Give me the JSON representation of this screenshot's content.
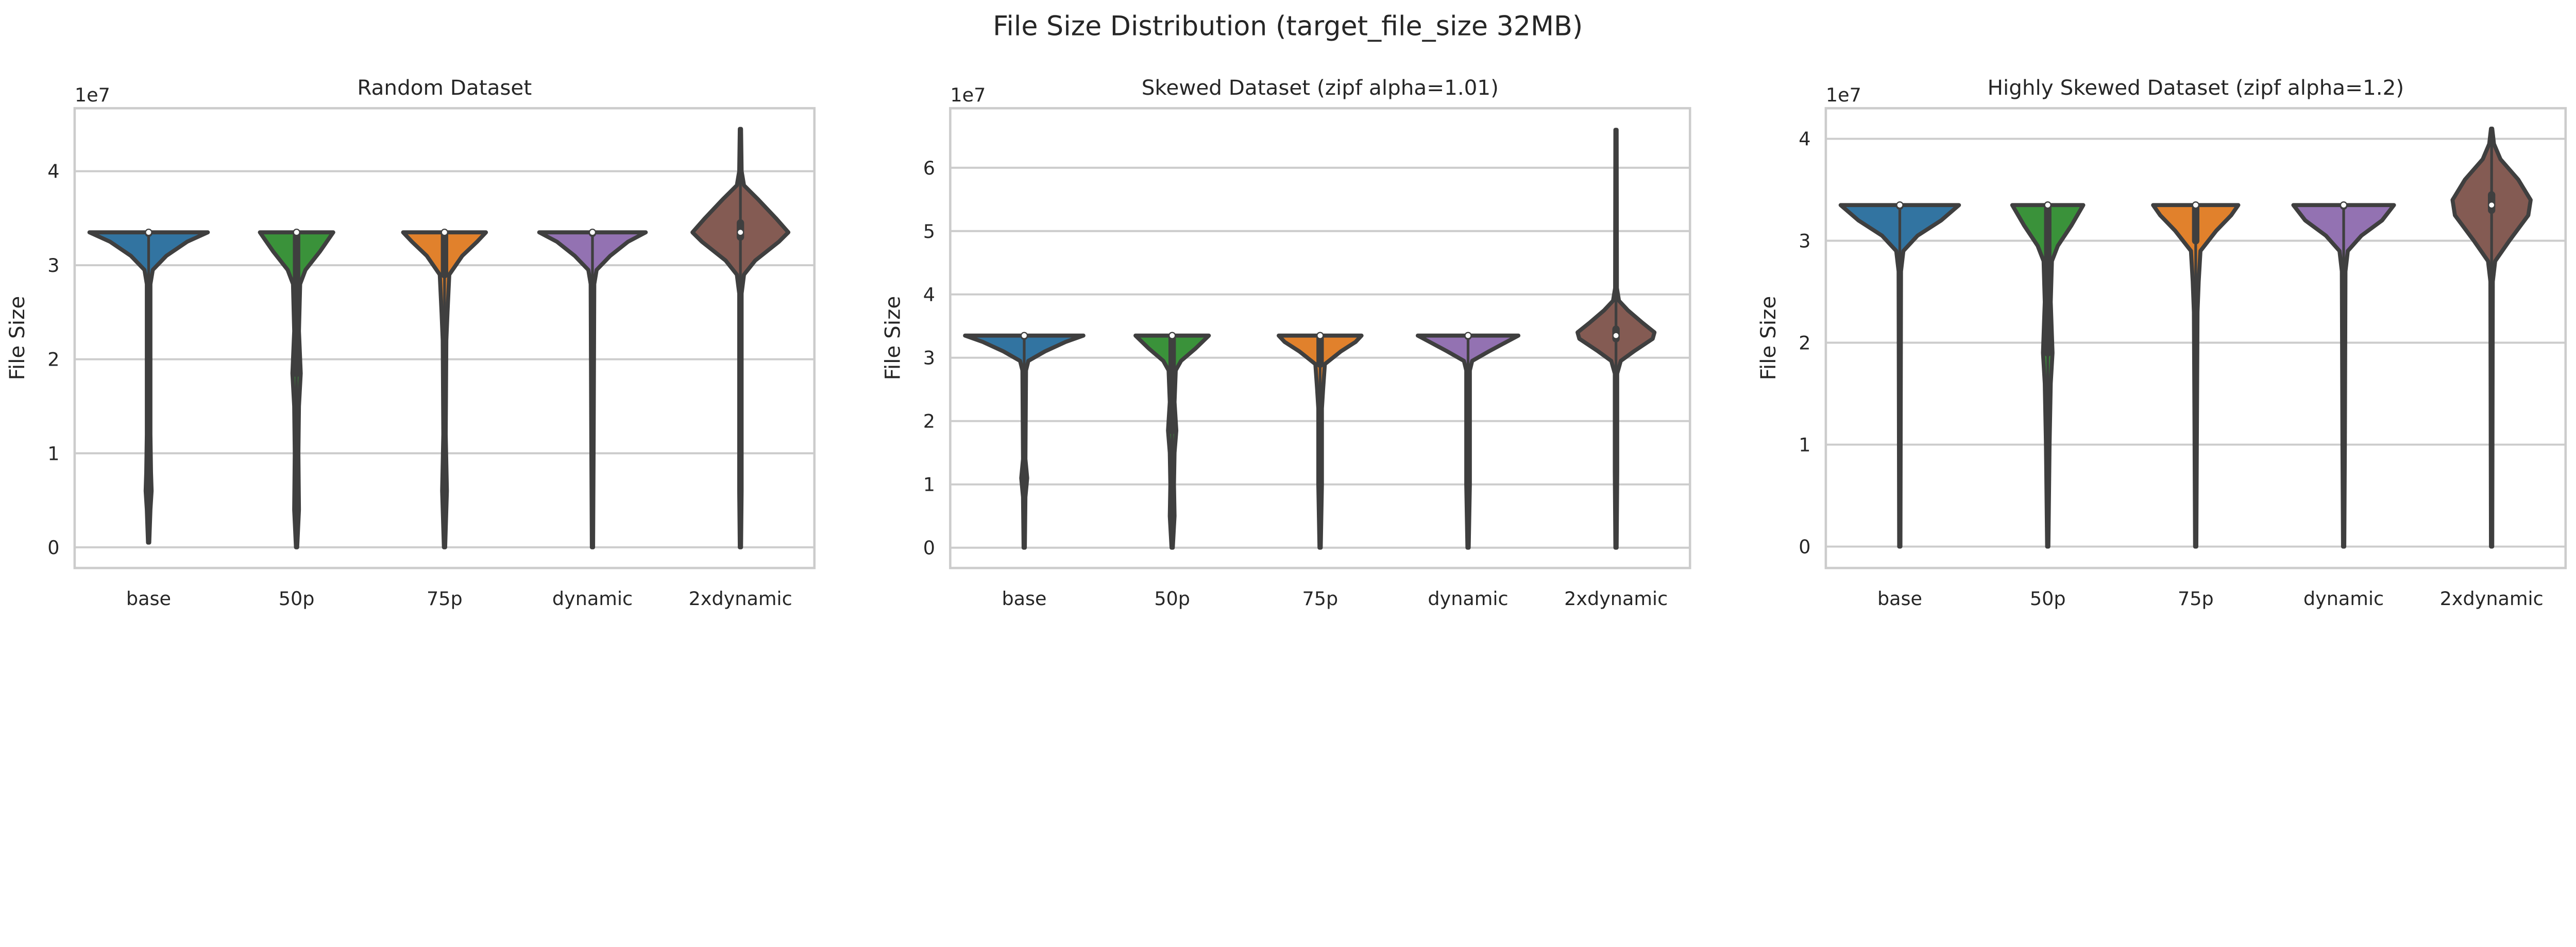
{
  "chart_data": {
    "type": "violin",
    "suptitle": "File Size Distribution (target_file_size 32MB)",
    "colors": {
      "base": "#3274a1",
      "50p": "#3a923a",
      "75p": "#e1812c",
      "dynamic": "#9372b2",
      "2xdynamic": "#845b53",
      "edge": "#3f3f3f"
    },
    "panels": [
      {
        "title": "Random Dataset",
        "ylabel": "File Size",
        "offset_label": "1e7",
        "scale": 10000000,
        "ylim": [
          -0.22,
          4.67
        ],
        "yticks": [
          0,
          1,
          2,
          3,
          4
        ],
        "grid": true,
        "categories": [
          "base",
          "50p",
          "75p",
          "dynamic",
          "2xdynamic"
        ],
        "violins": [
          {
            "min": 0.05,
            "max": 3.35,
            "q1": 3.34,
            "median": 3.35,
            "q3": 3.35,
            "density": [
              [
                0.05,
                0.01
              ],
              [
                0.4,
                0.03
              ],
              [
                0.6,
                0.05
              ],
              [
                0.8,
                0.04
              ],
              [
                1.2,
                0.03
              ],
              [
                2.8,
                0.03
              ],
              [
                2.95,
                0.07
              ],
              [
                3.1,
                0.3
              ],
              [
                3.25,
                0.65
              ],
              [
                3.35,
                1.0
              ]
            ]
          },
          {
            "min": 0.0,
            "max": 3.37,
            "q1": 1.85,
            "median": 3.35,
            "q3": 3.35,
            "density": [
              [
                0.0,
                0.01
              ],
              [
                0.4,
                0.04
              ],
              [
                1.0,
                0.03
              ],
              [
                1.5,
                0.04
              ],
              [
                1.85,
                0.07
              ],
              [
                2.3,
                0.04
              ],
              [
                2.8,
                0.06
              ],
              [
                2.95,
                0.15
              ],
              [
                3.15,
                0.4
              ],
              [
                3.35,
                0.62
              ]
            ]
          },
          {
            "min": 0.0,
            "max": 3.37,
            "q1": 2.9,
            "median": 3.35,
            "q3": 3.35,
            "density": [
              [
                0.0,
                0.01
              ],
              [
                0.6,
                0.04
              ],
              [
                1.2,
                0.02
              ],
              [
                2.2,
                0.03
              ],
              [
                2.5,
                0.05
              ],
              [
                2.9,
                0.08
              ],
              [
                3.1,
                0.3
              ],
              [
                3.25,
                0.55
              ],
              [
                3.35,
                0.7
              ]
            ]
          },
          {
            "min": 0.0,
            "max": 3.35,
            "q1": 3.34,
            "median": 3.35,
            "q3": 3.35,
            "density": [
              [
                0.0,
                0.01
              ],
              [
                1.2,
                0.02
              ],
              [
                2.8,
                0.03
              ],
              [
                2.95,
                0.07
              ],
              [
                3.1,
                0.3
              ],
              [
                3.25,
                0.6
              ],
              [
                3.35,
                0.9
              ]
            ]
          },
          {
            "min": 0.0,
            "max": 4.45,
            "q1": 3.3,
            "median": 3.35,
            "q3": 3.45,
            "density": [
              [
                0.0,
                0.01
              ],
              [
                0.6,
                0.02
              ],
              [
                2.7,
                0.02
              ],
              [
                2.9,
                0.06
              ],
              [
                3.05,
                0.25
              ],
              [
                3.25,
                0.65
              ],
              [
                3.35,
                0.81
              ],
              [
                3.5,
                0.6
              ],
              [
                3.7,
                0.3
              ],
              [
                3.85,
                0.06
              ],
              [
                4.0,
                0.02
              ],
              [
                4.45,
                0.01
              ]
            ]
          }
        ]
      },
      {
        "title": "Skewed Dataset (zipf alpha=1.01)",
        "ylabel": "File Size",
        "offset_label": "1e7",
        "scale": 10000000,
        "ylim": [
          -0.32,
          6.94
        ],
        "yticks": [
          0,
          1,
          2,
          3,
          4,
          5,
          6
        ],
        "grid": true,
        "categories": [
          "base",
          "50p",
          "75p",
          "dynamic",
          "2xdynamic"
        ],
        "violins": [
          {
            "min": 0.0,
            "max": 3.35,
            "q1": 3.34,
            "median": 3.35,
            "q3": 3.35,
            "density": [
              [
                0.0,
                0.01
              ],
              [
                0.8,
                0.02
              ],
              [
                1.1,
                0.05
              ],
              [
                1.4,
                0.02
              ],
              [
                2.8,
                0.03
              ],
              [
                2.95,
                0.07
              ],
              [
                3.1,
                0.35
              ],
              [
                3.25,
                0.7
              ],
              [
                3.35,
                1.0
              ]
            ]
          },
          {
            "min": 0.0,
            "max": 3.37,
            "q1": 1.85,
            "median": 3.35,
            "q3": 3.35,
            "density": [
              [
                0.0,
                0.01
              ],
              [
                0.5,
                0.04
              ],
              [
                1.0,
                0.03
              ],
              [
                1.5,
                0.04
              ],
              [
                1.85,
                0.07
              ],
              [
                2.3,
                0.04
              ],
              [
                2.8,
                0.06
              ],
              [
                2.95,
                0.15
              ],
              [
                3.15,
                0.4
              ],
              [
                3.35,
                0.62
              ]
            ]
          },
          {
            "min": 0.0,
            "max": 3.37,
            "q1": 2.9,
            "median": 3.35,
            "q3": 3.35,
            "density": [
              [
                0.0,
                0.01
              ],
              [
                1.0,
                0.03
              ],
              [
                2.2,
                0.03
              ],
              [
                2.5,
                0.05
              ],
              [
                2.9,
                0.08
              ],
              [
                3.1,
                0.35
              ],
              [
                3.25,
                0.6
              ],
              [
                3.35,
                0.7
              ]
            ]
          },
          {
            "min": 0.0,
            "max": 3.35,
            "q1": 3.34,
            "median": 3.35,
            "q3": 3.35,
            "density": [
              [
                0.0,
                0.01
              ],
              [
                1.0,
                0.03
              ],
              [
                2.8,
                0.03
              ],
              [
                2.95,
                0.07
              ],
              [
                3.1,
                0.35
              ],
              [
                3.25,
                0.65
              ],
              [
                3.35,
                0.85
              ]
            ]
          },
          {
            "min": 0.0,
            "max": 6.6,
            "q1": 3.3,
            "median": 3.35,
            "q3": 3.45,
            "density": [
              [
                0.0,
                0.01
              ],
              [
                1.2,
                0.02
              ],
              [
                2.75,
                0.02
              ],
              [
                2.95,
                0.08
              ],
              [
                3.1,
                0.3
              ],
              [
                3.3,
                0.62
              ],
              [
                3.4,
                0.65
              ],
              [
                3.55,
                0.45
              ],
              [
                3.75,
                0.2
              ],
              [
                3.9,
                0.05
              ],
              [
                4.1,
                0.015
              ],
              [
                6.6,
                0.01
              ]
            ]
          }
        ]
      },
      {
        "title": "Highly Skewed Dataset (zipf alpha=1.2)",
        "ylabel": "File Size",
        "offset_label": "1e7",
        "scale": 10000000,
        "ylim": [
          -0.21,
          4.3
        ],
        "yticks": [
          0,
          1,
          2,
          3,
          4
        ],
        "grid": true,
        "categories": [
          "base",
          "50p",
          "75p",
          "dynamic",
          "2xdynamic"
        ],
        "violins": [
          {
            "min": 0.0,
            "max": 3.35,
            "q1": 3.34,
            "median": 3.35,
            "q3": 3.35,
            "density": [
              [
                0.0,
                0.01
              ],
              [
                2.7,
                0.02
              ],
              [
                2.9,
                0.06
              ],
              [
                3.05,
                0.3
              ],
              [
                3.2,
                0.7
              ],
              [
                3.35,
                1.0
              ]
            ]
          },
          {
            "min": 0.0,
            "max": 3.37,
            "q1": 1.9,
            "median": 3.35,
            "q3": 3.35,
            "density": [
              [
                0.0,
                0.01
              ],
              [
                1.0,
                0.03
              ],
              [
                1.6,
                0.05
              ],
              [
                1.9,
                0.08
              ],
              [
                2.4,
                0.05
              ],
              [
                2.8,
                0.07
              ],
              [
                2.95,
                0.17
              ],
              [
                3.15,
                0.4
              ],
              [
                3.35,
                0.6
              ]
            ]
          },
          {
            "min": 0.0,
            "max": 3.37,
            "q1": 3.0,
            "median": 3.35,
            "q3": 3.35,
            "density": [
              [
                0.0,
                0.01
              ],
              [
                1.2,
                0.02
              ],
              [
                2.3,
                0.03
              ],
              [
                2.6,
                0.05
              ],
              [
                2.9,
                0.08
              ],
              [
                3.1,
                0.35
              ],
              [
                3.25,
                0.6
              ],
              [
                3.35,
                0.72
              ]
            ]
          },
          {
            "min": 0.0,
            "max": 3.35,
            "q1": 3.34,
            "median": 3.35,
            "q3": 3.35,
            "density": [
              [
                0.0,
                0.01
              ],
              [
                1.0,
                0.02
              ],
              [
                2.7,
                0.03
              ],
              [
                2.9,
                0.07
              ],
              [
                3.05,
                0.3
              ],
              [
                3.2,
                0.65
              ],
              [
                3.35,
                0.85
              ]
            ]
          },
          {
            "min": 0.0,
            "max": 4.1,
            "q1": 3.3,
            "median": 3.35,
            "q3": 3.45,
            "density": [
              [
                0.0,
                0.01
              ],
              [
                2.6,
                0.02
              ],
              [
                2.8,
                0.06
              ],
              [
                3.0,
                0.3
              ],
              [
                3.25,
                0.62
              ],
              [
                3.4,
                0.66
              ],
              [
                3.6,
                0.45
              ],
              [
                3.8,
                0.15
              ],
              [
                3.95,
                0.04
              ],
              [
                4.1,
                0.01
              ]
            ]
          }
        ]
      }
    ]
  }
}
